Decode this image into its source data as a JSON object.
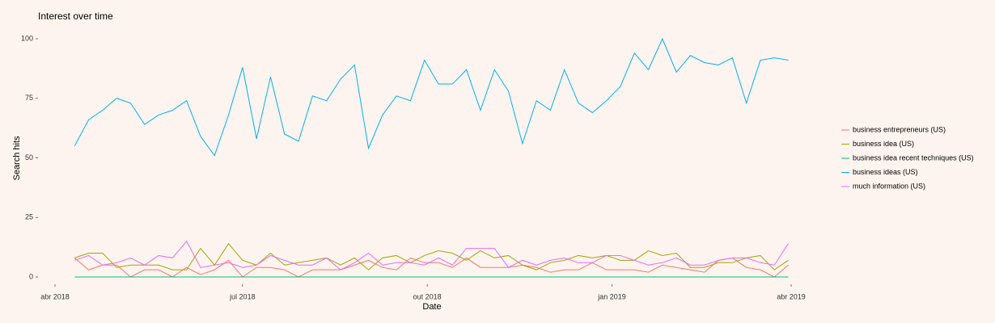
{
  "chart_data": {
    "type": "line",
    "title": "Interest over time",
    "x_label": "Date",
    "y_label": "Search hits",
    "xlim": [
      -1.4,
      51.2
    ],
    "xticks": [
      {
        "value": -1.4,
        "label": "abr 2018"
      },
      {
        "value": 12.0,
        "label": "jul 2018"
      },
      {
        "value": 25.2,
        "label": "out 2018"
      },
      {
        "value": 38.4,
        "label": "jan 2019"
      },
      {
        "value": 51.2,
        "label": "abr 2019"
      }
    ],
    "ylim": [
      0,
      100
    ],
    "yticks": [
      0,
      25,
      50,
      75,
      100
    ],
    "grid": false,
    "legend_position": "right",
    "series": [
      {
        "name": "business entrepreneurs (US)",
        "color": "#F8766D",
        "values": [
          8,
          3,
          5,
          5,
          0,
          3,
          3,
          0,
          4,
          1,
          3,
          7,
          0,
          4,
          4,
          3,
          0,
          3,
          3,
          3,
          5,
          7,
          4,
          3,
          8,
          6,
          6,
          4,
          8,
          4,
          4,
          4,
          5,
          4,
          2,
          3,
          3,
          6,
          3,
          3,
          3,
          2,
          5,
          4,
          3,
          2,
          7,
          8,
          4,
          3,
          0,
          5
        ]
      },
      {
        "name": "business idea (US)",
        "color": "#A3A500",
        "values": [
          8,
          10,
          10,
          4,
          5,
          5,
          5,
          3,
          3,
          12,
          5,
          14,
          7,
          5,
          10,
          5,
          6,
          7,
          8,
          5,
          8,
          3,
          8,
          9,
          6,
          9,
          11,
          10,
          7,
          11,
          8,
          9,
          5,
          3,
          6,
          7,
          9,
          8,
          9,
          7,
          7,
          11,
          9,
          10,
          4,
          4,
          6,
          6,
          8,
          9,
          3,
          7
        ]
      },
      {
        "name": "business idea recent techniques (US)",
        "color": "#00BF7D",
        "values": [
          0,
          0,
          0,
          0,
          0,
          0,
          0,
          0,
          0,
          0,
          0,
          0,
          0,
          0,
          0,
          0,
          0,
          0,
          0,
          0,
          0,
          0,
          0,
          0,
          0,
          0,
          0,
          0,
          0,
          0,
          0,
          0,
          0,
          0,
          0,
          0,
          0,
          0,
          0,
          0,
          0,
          0,
          0,
          0,
          0,
          0,
          0,
          0,
          0,
          0,
          0,
          0
        ]
      },
      {
        "name": "business ideas (US)",
        "color": "#00B0F6",
        "values": [
          55,
          66,
          70,
          75,
          73,
          64,
          68,
          70,
          74,
          59,
          51,
          68,
          88,
          58,
          84,
          60,
          57,
          76,
          74,
          83,
          89,
          54,
          68,
          76,
          74,
          91,
          81,
          81,
          87,
          70,
          87,
          78,
          56,
          74,
          70,
          87,
          73,
          69,
          74,
          80,
          94,
          87,
          100,
          86,
          93,
          90,
          89,
          92,
          73,
          91,
          92,
          91
        ]
      },
      {
        "name": "much information (US)",
        "color": "#E76BF3",
        "values": [
          7,
          9,
          5,
          6,
          8,
          5,
          9,
          8,
          15,
          4,
          5,
          6,
          4,
          5,
          9,
          7,
          5,
          5,
          8,
          3,
          6,
          10,
          5,
          6,
          6,
          5,
          8,
          5,
          12,
          12,
          12,
          4,
          7,
          5,
          7,
          8,
          6,
          6,
          9,
          9,
          7,
          5,
          6,
          8,
          5,
          5,
          7,
          8,
          8,
          6,
          5,
          14
        ]
      }
    ]
  }
}
